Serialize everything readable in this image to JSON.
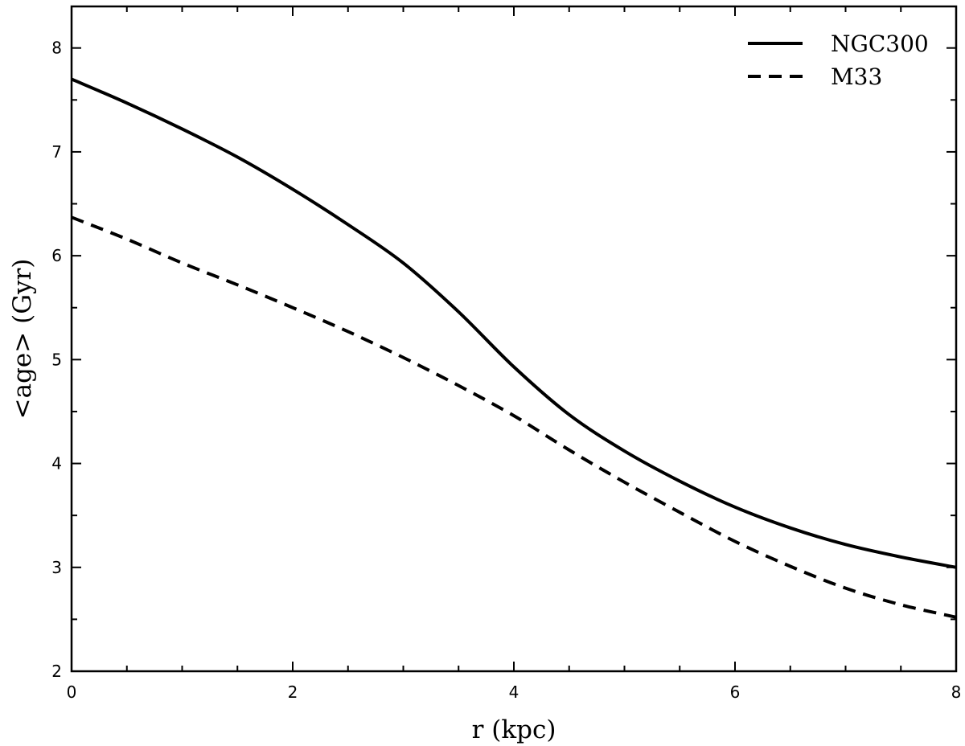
{
  "chart_data": {
    "type": "line",
    "title": "",
    "xlabel": "r (kpc)",
    "ylabel": "<age> (Gyr)",
    "xlim": [
      0,
      8
    ],
    "ylim": [
      2,
      8.4
    ],
    "x_ticks": [
      "0",
      "2",
      "4",
      "6",
      "8"
    ],
    "y_ticks": [
      "2",
      "3",
      "4",
      "5",
      "6",
      "7",
      "8"
    ],
    "grid": false,
    "legend_position": "top-right",
    "series": [
      {
        "name": "NGC300",
        "style": "solid",
        "color": "#000000",
        "x": [
          0,
          0.5,
          1,
          1.5,
          2,
          2.5,
          3,
          3.5,
          4,
          4.5,
          5,
          5.5,
          6,
          6.5,
          7,
          7.5,
          8
        ],
        "y": [
          7.7,
          7.47,
          7.22,
          6.95,
          6.64,
          6.3,
          5.93,
          5.46,
          4.93,
          4.47,
          4.12,
          3.83,
          3.58,
          3.38,
          3.22,
          3.1,
          3.0
        ]
      },
      {
        "name": "M33",
        "style": "dashed",
        "color": "#000000",
        "x": [
          0,
          0.5,
          1,
          1.5,
          2,
          2.5,
          3,
          3.5,
          4,
          4.5,
          5,
          5.5,
          6,
          6.5,
          7,
          7.5,
          8
        ],
        "y": [
          6.37,
          6.16,
          5.93,
          5.72,
          5.5,
          5.27,
          5.02,
          4.75,
          4.46,
          4.13,
          3.82,
          3.53,
          3.25,
          3.01,
          2.8,
          2.64,
          2.52
        ]
      }
    ]
  }
}
